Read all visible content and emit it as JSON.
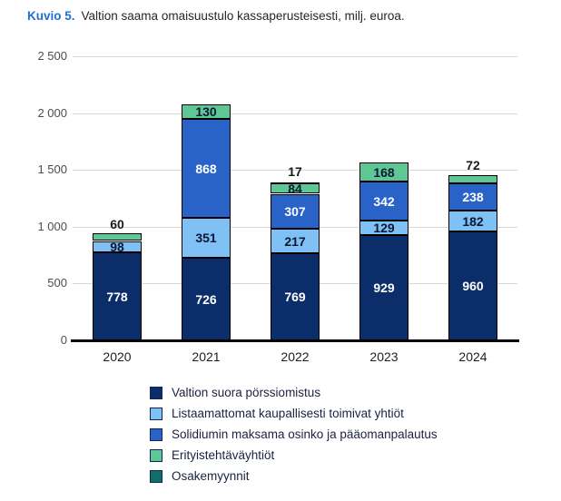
{
  "title": {
    "prefix": "Kuvio 5.",
    "text": "Valtion saama omaisuustulo kassaperusteisesti, milj. euroa.",
    "prefix_color": "#1d6fd2"
  },
  "chart_data": {
    "type": "bar",
    "stacked": true,
    "title": "Valtion saama omaisuustulo kassaperusteisesti, milj. euroa.",
    "categories": [
      "2020",
      "2021",
      "2022",
      "2023",
      "2024"
    ],
    "series": [
      {
        "name": "Valtion suora pörssiomistus",
        "color": "#0b2d69",
        "label_color": "#ffffff",
        "values": [
          778,
          726,
          769,
          929,
          960
        ]
      },
      {
        "name": "Listaamattomat kaupallisesti toimivat yhtiöt",
        "color": "#7fc0f5",
        "label_color": "#0b1733",
        "values": [
          98,
          351,
          217,
          129,
          182
        ]
      },
      {
        "name": "Solidiumin maksama osinko ja pääomanpalautus",
        "color": "#2a63c8",
        "label_color": "#ffffff",
        "values": [
          0,
          868,
          307,
          342,
          238
        ]
      },
      {
        "name": "Erityistehtäväyhtiöt",
        "color": "#5ec795",
        "label_color": "#0b1733",
        "values": [
          60,
          130,
          84,
          168,
          72
        ]
      },
      {
        "name": "Osakemyynnit",
        "color": "#0f6f66",
        "label_color": "#1a1a1a",
        "values": [
          0,
          0,
          17,
          0,
          0
        ]
      }
    ],
    "label_positions": [
      [
        "inside",
        "inside",
        "inside",
        "inside",
        "inside"
      ],
      [
        "inside",
        "inside",
        "inside",
        "inside",
        "inside"
      ],
      [
        null,
        "inside",
        "inside",
        "inside",
        "inside"
      ],
      [
        "above",
        "inside",
        "inside",
        "inside",
        "above"
      ],
      [
        null,
        null,
        "above",
        null,
        null
      ]
    ],
    "y_ticks": [
      {
        "value": 2500,
        "label": "2 500"
      },
      {
        "value": 2000,
        "label": "2 000"
      },
      {
        "value": 1500,
        "label": "1 500"
      },
      {
        "value": 1000,
        "label": "1 000"
      },
      {
        "value": 500,
        "label": "500"
      },
      {
        "value": 0,
        "label": "0"
      }
    ],
    "ylim": [
      0,
      2500
    ],
    "grid": true,
    "legend_position": "bottom",
    "bar_outline": "#000000",
    "gridline_color": "#d9d9d9"
  }
}
